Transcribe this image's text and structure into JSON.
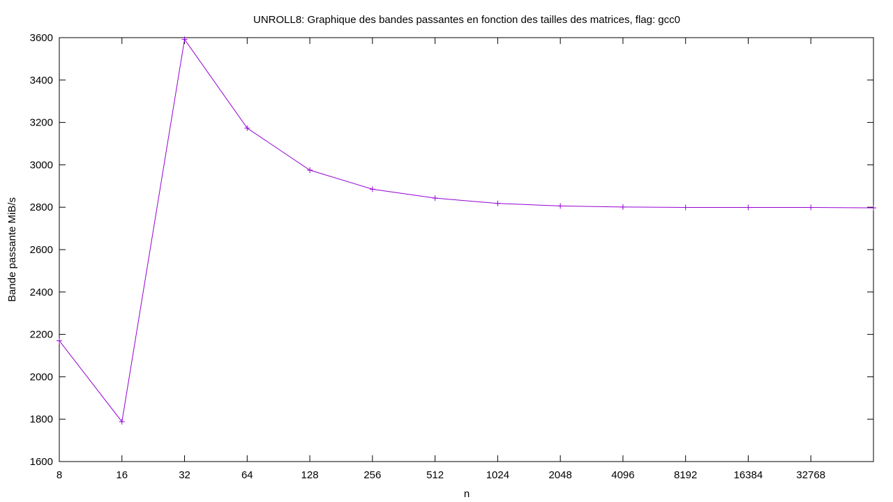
{
  "chart_data": {
    "type": "line",
    "title": "UNROLL8: Graphique des bandes passantes en fonction des tailles des matrices, flag: gcc0",
    "xlabel": "n",
    "ylabel": "Bande passante MiB/s",
    "x_scale": "log2",
    "x_ticks": [
      "8",
      "16",
      "32",
      "64",
      "128",
      "256",
      "512",
      "1024",
      "2048",
      "4096",
      "8192",
      "16384",
      "32768"
    ],
    "y_ticks": [
      "1600",
      "1800",
      "2000",
      "2200",
      "2400",
      "2600",
      "2800",
      "3000",
      "3200",
      "3400",
      "3600"
    ],
    "xlim": [
      8,
      65536
    ],
    "ylim": [
      1600,
      3600
    ],
    "grid": false,
    "series": [
      {
        "name": "UNROLL8",
        "color": "#9400d3",
        "marker": "plus",
        "x": [
          8,
          16,
          32,
          64,
          128,
          256,
          512,
          1024,
          2048,
          4096,
          8192,
          16384,
          32768,
          65536
        ],
        "values": [
          2170,
          1788,
          3592,
          3173,
          2975,
          2885,
          2843,
          2818,
          2806,
          2801,
          2799,
          2799,
          2799,
          2797
        ]
      }
    ]
  }
}
